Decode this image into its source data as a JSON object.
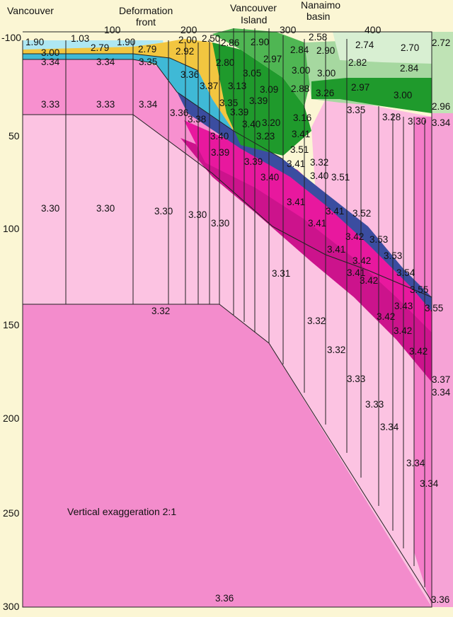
{
  "headers": {
    "vancouver": "Vancouver",
    "deformation_1": "Deformation",
    "deformation_2": "front",
    "vancouver_island_1": "Vancouver",
    "vancouver_island_2": "Island",
    "nanaimo_1": "Nanaimo",
    "nanaimo_2": "basin"
  },
  "x_ticks": [
    "100",
    "200",
    "300",
    "400"
  ],
  "y_ticks": [
    "-100",
    "50",
    "100",
    "150",
    "200",
    "250",
    "300"
  ],
  "note": "Vertical exaggeration 2:1",
  "colors": {
    "background": "#fbf6d4",
    "mantle": "#f7a6d6",
    "mantle_deep": "#f078c5",
    "upper_mantle": "#fcc3e2",
    "slab_crust": "#e8189e",
    "slab_mantle": "#c9128a",
    "slab_top": "#3b4da0",
    "oceanic_crust": "#3fb9d6",
    "water": "#aee7f3",
    "sediment": "#f2c640",
    "green_dark": "#1f9a2c",
    "green_mid": "#4fb653",
    "green_light": "#a6d8a0",
    "green_pale": "#d8efd2"
  },
  "density_labels": [
    "1.90",
    "1.03",
    "1.90",
    "2.00",
    "2.50",
    "2.86",
    "2.90",
    "2.58",
    "2.74",
    "2.70",
    "2.72",
    "3.00",
    "2.79",
    "2.79",
    "2.92",
    "2.97",
    "2.84",
    "2.90",
    "2.82",
    "2.84",
    "3.34",
    "3.34",
    "3.35",
    "3.36",
    "2.80",
    "3.05",
    "3.00",
    "3.00",
    "3.37",
    "3.13",
    "3.09",
    "2.88",
    "3.26",
    "2.97",
    "3.00",
    "3.33",
    "3.33",
    "3.34",
    "3.35",
    "3.39",
    "3.16",
    "2.96",
    "3.36",
    "3.39",
    "3.40",
    "3.20",
    "3.35",
    "3.28",
    "3.30",
    "3.34",
    "3.38",
    "3.40",
    "3.23",
    "3.41",
    "3.39",
    "3.51",
    "3.39",
    "3.40",
    "3.41",
    "3.32",
    "3.51",
    "3.40",
    "3.41",
    "3.52",
    "3.30",
    "3.30",
    "3.30",
    "3.30",
    "3.30",
    "3.41",
    "3.42",
    "3.53",
    "3.41",
    "3.42",
    "3.53",
    "3.31",
    "3.41",
    "3.42",
    "3.54",
    "3.41",
    "3.55",
    "3.43",
    "3.55",
    "3.32",
    "3.42",
    "3.32",
    "3.42",
    "3.42",
    "3.32",
    "3.33",
    "3.37",
    "3.34",
    "3.33",
    "3.34",
    "3.34",
    "3.34",
    "3.36",
    "3.36"
  ]
}
